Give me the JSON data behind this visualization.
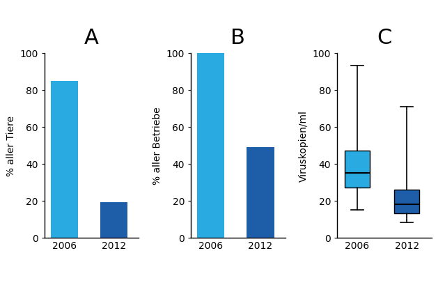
{
  "panel_A": {
    "title": "A",
    "categories": [
      "2006",
      "2012"
    ],
    "values": [
      85,
      19
    ],
    "colors": [
      "#29ABE2",
      "#1E5EA8"
    ],
    "ylabel": "% aller Tiere",
    "ylim": [
      0,
      100
    ],
    "yticks": [
      0,
      20,
      40,
      60,
      80,
      100
    ]
  },
  "panel_B": {
    "title": "B",
    "categories": [
      "2006",
      "2012"
    ],
    "values": [
      100,
      49
    ],
    "colors": [
      "#29ABE2",
      "#1E5EA8"
    ],
    "ylabel": "% aller Betriebe",
    "ylim": [
      0,
      100
    ],
    "yticks": [
      0,
      20,
      40,
      60,
      80,
      100
    ]
  },
  "panel_C": {
    "title": "C",
    "categories": [
      "2006",
      "2012"
    ],
    "ylabel": "Viruskopien/ml",
    "ylim": [
      0,
      100
    ],
    "yticks": [
      0,
      20,
      40,
      60,
      80,
      100
    ],
    "box_2006": {
      "whislo": 15,
      "q1": 27,
      "med": 35,
      "q3": 47,
      "whishi": 93,
      "color": "#29ABE2"
    },
    "box_2012": {
      "whislo": 8,
      "q1": 13,
      "med": 18,
      "q3": 26,
      "whishi": 71,
      "color": "#1E5EA8"
    }
  },
  "title_fontsize": 22,
  "label_fontsize": 10,
  "tick_fontsize": 10,
  "background_color": "#FFFFFF",
  "fig_width": 6.39,
  "fig_height": 4.27,
  "fig_dpi": 100
}
